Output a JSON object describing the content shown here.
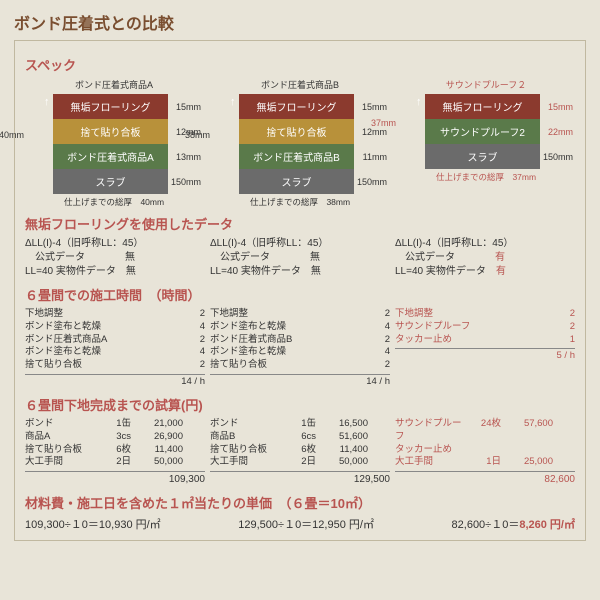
{
  "title": "ボンド圧着式との比較",
  "sections": {
    "spec": "スペック",
    "data": "無垢フローリングを使用したデータ",
    "time": "６畳間での施工時間　（時間）",
    "cost": "６畳間下地完成までの試算(円)",
    "unit": "材料費・施工日を含めた１㎡当たりの単価　（６畳＝10㎡）"
  },
  "diagrams": [
    {
      "title": "ボンド圧着式商品A",
      "titleRed": false,
      "left": "40mm",
      "leftRed": false,
      "layers": [
        {
          "t": "無垢フローリング",
          "c": "c-br",
          "d": "15mm"
        },
        {
          "t": "捨て貼り合板",
          "c": "c-ye",
          "d": "12mm"
        },
        {
          "t": "ボンド圧着式商品A",
          "c": "c-gr",
          "d": "13mm"
        },
        {
          "t": "スラブ",
          "c": "c-gy",
          "d": "150mm"
        }
      ],
      "note": "仕上げまでの総厚　40mm",
      "noteRed": false
    },
    {
      "title": "ボンド圧着式商品B",
      "titleRed": false,
      "left": "38mm",
      "leftRed": false,
      "layers": [
        {
          "t": "無垢フローリング",
          "c": "c-br",
          "d": "15mm"
        },
        {
          "t": "捨て貼り合板",
          "c": "c-ye",
          "d": "12mm"
        },
        {
          "t": "ボンド圧着式商品B",
          "c": "c-gr",
          "d": "11mm"
        },
        {
          "t": "スラブ",
          "c": "c-gy",
          "d": "150mm"
        }
      ],
      "note": "仕上げまでの総厚　38mm",
      "noteRed": false
    },
    {
      "title": "サウンドプルーフ２",
      "titleRed": true,
      "left": "37mm",
      "leftRed": true,
      "layers": [
        {
          "t": "無垢フローリング",
          "c": "c-br",
          "d": "15mm",
          "dr": true
        },
        {
          "t": "サウンドプルーフ2",
          "c": "c-gr",
          "d": "22mm",
          "dr": true
        },
        {
          "t": "スラブ",
          "c": "c-gy",
          "d": "150mm"
        }
      ],
      "note": "仕上げまでの総厚　37mm",
      "noteRed": true
    }
  ],
  "dataCols": [
    [
      "ΔLL(I)-4（旧呼称LL：45）",
      "　公式データ　　　　無",
      "LL=40 実物件データ　無"
    ],
    [
      "ΔLL(I)-4（旧呼称LL：45）",
      "　公式データ　　　　無",
      "LL=40 実物件データ　無"
    ],
    [
      "ΔLL(I)-4（旧呼称LL：45）",
      "　公式データ　　　　有",
      "LL=40 実物件データ　有"
    ]
  ],
  "timeCols": [
    {
      "rows": [
        [
          "下地調整",
          "2"
        ],
        [
          "ボンド塗布と乾燥",
          "4"
        ],
        [
          "ボンド圧着式商品A",
          "2"
        ],
        [
          "ボンド塗布と乾燥",
          "4"
        ],
        [
          "捨て貼り合板",
          "2"
        ]
      ],
      "total": "14 / h"
    },
    {
      "rows": [
        [
          "下地調整",
          "2"
        ],
        [
          "ボンド塗布と乾燥",
          "4"
        ],
        [
          "ボンド圧着式商品B",
          "2"
        ],
        [
          "ボンド塗布と乾燥",
          "4"
        ],
        [
          "捨て貼り合板",
          "2"
        ]
      ],
      "total": "14 / h"
    },
    {
      "rows": [
        [
          "下地調整",
          "2"
        ],
        [
          "サウンドプルーフ",
          "2"
        ],
        [
          "タッカー止め",
          "1"
        ]
      ],
      "total": "5 / h",
      "red": true
    }
  ],
  "costCols": [
    {
      "rows": [
        [
          "ボンド",
          "1缶",
          "21,000"
        ],
        [
          "商品A",
          "3cs",
          "26,900"
        ],
        [
          "捨て貼り合板",
          "6枚",
          "11,400"
        ],
        [
          "大工手間",
          "2日",
          "50,000"
        ]
      ],
      "total": "109,300"
    },
    {
      "rows": [
        [
          "ボンド",
          "1缶",
          "16,500"
        ],
        [
          "商品B",
          "6cs",
          "51,600"
        ],
        [
          "捨て貼り合板",
          "6枚",
          "11,400"
        ],
        [
          "大工手間",
          "2日",
          "50,000"
        ]
      ],
      "total": "129,500"
    },
    {
      "rows": [
        [
          "サウンドプルーフ",
          "24枚",
          "57,600"
        ],
        [
          "タッカー止め",
          "",
          ""
        ],
        [
          "",
          "",
          ""
        ],
        [
          "大工手間",
          "1日",
          "25,000"
        ]
      ],
      "total": "82,600",
      "red": true
    }
  ],
  "final": [
    "109,300÷１0＝10,930 円/㎡",
    "129,500÷１0＝12,950 円/㎡",
    "82,600÷１0＝",
    "8,260 円/㎡"
  ]
}
